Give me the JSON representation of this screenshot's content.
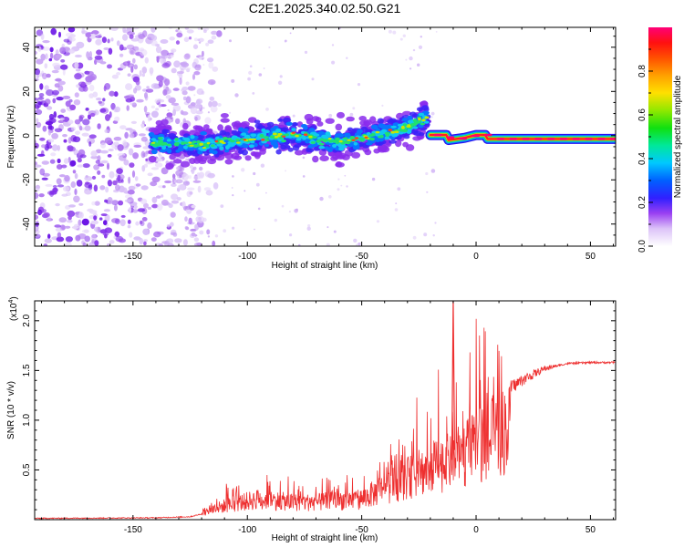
{
  "title": "C2E1.2025.340.02.50.G21",
  "chart_data": [
    {
      "type": "heatmap",
      "xlabel": "Height of straight line (km)",
      "ylabel": "Frequency (Hz)",
      "xlim": [
        -193,
        61
      ],
      "ylim": [
        -50,
        49
      ],
      "xticks": [
        -150,
        -100,
        -50,
        0,
        50
      ],
      "yticks": [
        -40,
        -20,
        0,
        20,
        40
      ],
      "colorbar": {
        "label": "Normalized spectral amplitude",
        "range": [
          0.0,
          1.0
        ],
        "ticks": [
          0.0,
          0.2,
          0.4,
          0.6,
          0.8
        ],
        "tick_labels": [
          "0.0",
          "0.2",
          "0.4",
          "0.6",
          "0.8"
        ]
      },
      "features": {
        "noise_region_x": [
          -193,
          -120
        ],
        "dispersed_band": [
          {
            "x": -140,
            "freq": -3
          },
          {
            "x": -120,
            "freq": -4
          },
          {
            "x": -100,
            "freq": -2
          },
          {
            "x": -80,
            "freq": 1
          },
          {
            "x": -60,
            "freq": -3
          },
          {
            "x": -50,
            "freq": -1
          },
          {
            "x": -40,
            "freq": 1
          },
          {
            "x": -30,
            "freq": 4
          },
          {
            "x": -22,
            "freq": 8
          }
        ],
        "tone_band": {
          "x_start": -22,
          "x_end": 61,
          "freq": 0,
          "points": [
            {
              "x": -20,
              "freq": 0.3
            },
            {
              "x": -13,
              "freq": 0.3
            },
            {
              "x": -12,
              "freq": -2
            },
            {
              "x": -5,
              "freq": -1
            },
            {
              "x": 0,
              "freq": 0.3
            },
            {
              "x": 4,
              "freq": 0.3
            },
            {
              "x": 5,
              "freq": -1.5
            },
            {
              "x": 10,
              "freq": -1.5
            },
            {
              "x": 61,
              "freq": -1.5
            }
          ]
        }
      }
    },
    {
      "type": "line",
      "xlabel": "Height of straight line (km)",
      "ylabel": "SNR (10 * v/v)",
      "y_multiplier_label": "(x10",
      "y_multiplier_exponent": "4",
      "xlim": [
        -193,
        61
      ],
      "ylim": [
        0,
        2.2
      ],
      "xticks": [
        -150,
        -100,
        -50,
        0,
        50
      ],
      "yticks": [
        0.5,
        1.0,
        1.5,
        2.0
      ],
      "ytick_labels": [
        "0.5",
        "1.0",
        "1.5",
        "2.0"
      ],
      "series": [
        {
          "color": "#ee3030",
          "envelope": [
            {
              "x": -193,
              "y": 0.02
            },
            {
              "x": -140,
              "y": 0.03
            },
            {
              "x": -125,
              "y": 0.05
            },
            {
              "x": -110,
              "y": 0.2
            },
            {
              "x": -95,
              "y": 0.3
            },
            {
              "x": -80,
              "y": 0.25
            },
            {
              "x": -70,
              "y": 0.25
            },
            {
              "x": -60,
              "y": 0.28
            },
            {
              "x": -50,
              "y": 0.3
            },
            {
              "x": -40,
              "y": 0.45
            },
            {
              "x": -30,
              "y": 0.6
            },
            {
              "x": -20,
              "y": 0.75
            },
            {
              "x": -10,
              "y": 0.85
            },
            {
              "x": 0,
              "y": 1.05
            },
            {
              "x": 10,
              "y": 1.25
            },
            {
              "x": 20,
              "y": 1.4
            },
            {
              "x": 30,
              "y": 1.52
            },
            {
              "x": 40,
              "y": 1.57
            },
            {
              "x": 50,
              "y": 1.58
            },
            {
              "x": 61,
              "y": 1.58
            }
          ],
          "spike": {
            "x": -10,
            "y": 2.2
          }
        }
      ]
    }
  ]
}
